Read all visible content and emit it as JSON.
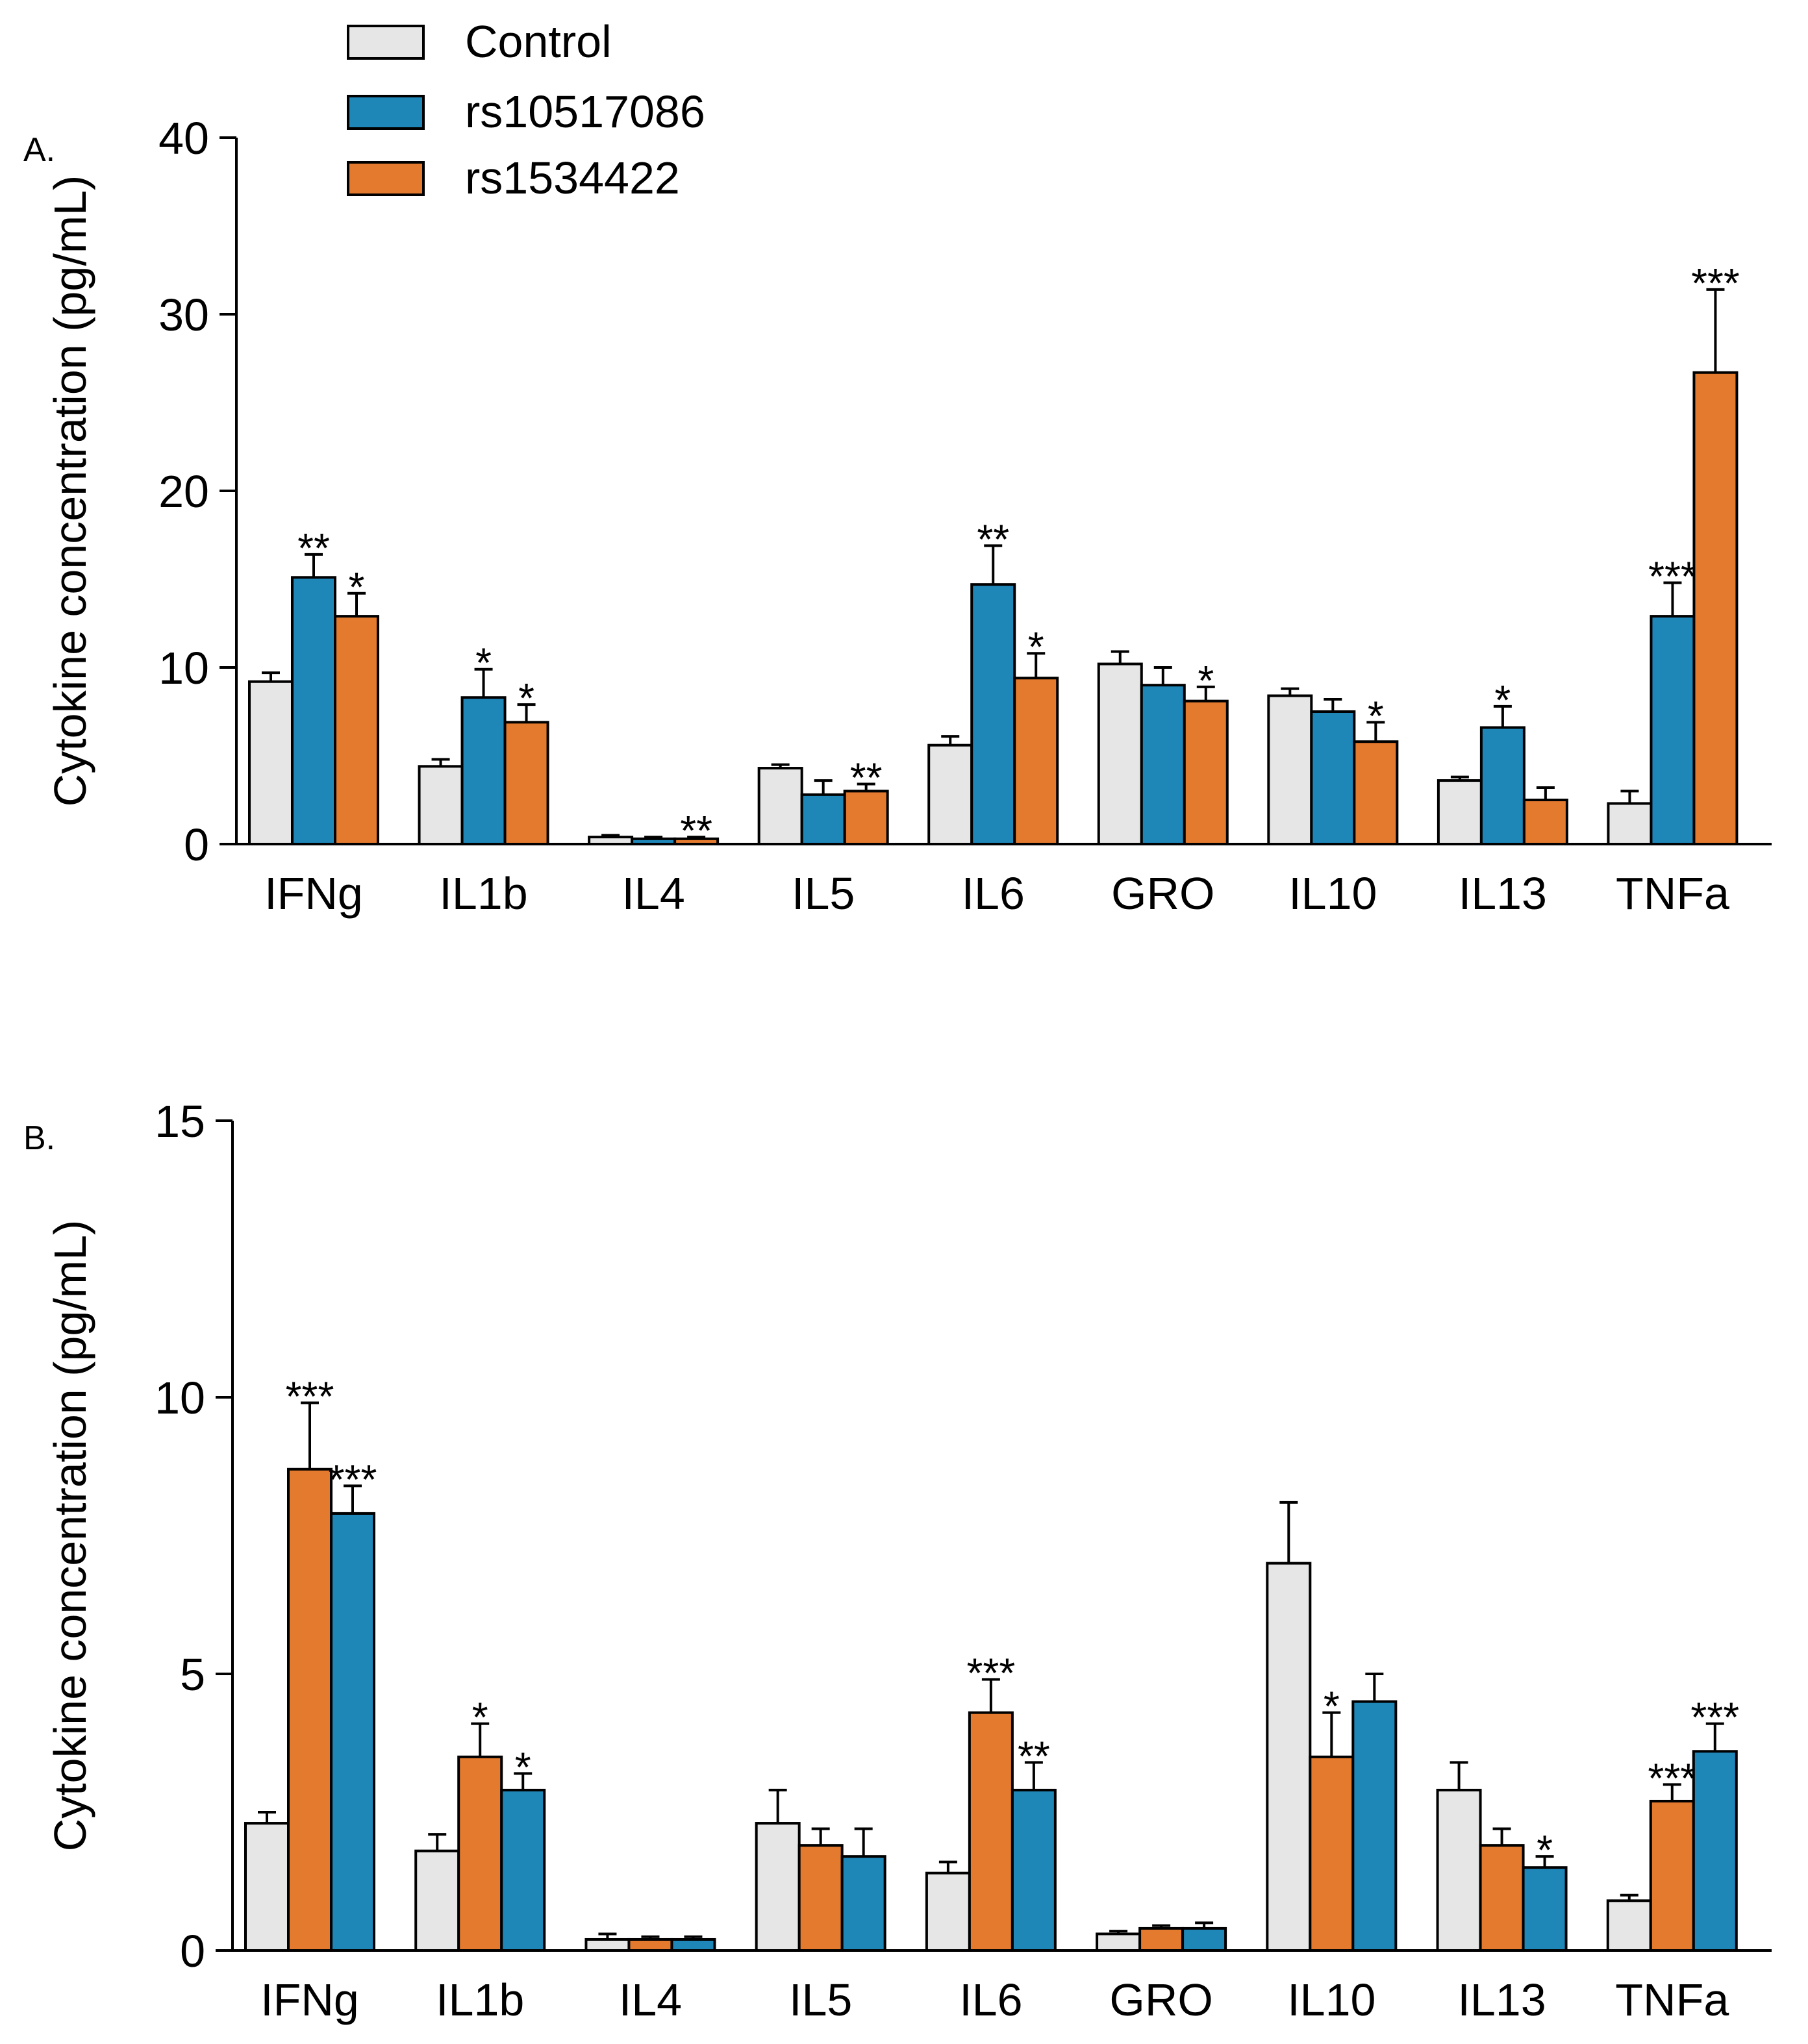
{
  "legend": {
    "entries": [
      {
        "name": "Control",
        "color": "#e6e6e6"
      },
      {
        "name": "rs10517086",
        "color": "#1f86b8"
      },
      {
        "name": "rs1534422",
        "color": "#e47a2e"
      }
    ]
  },
  "chart_data": [
    {
      "panel_label": "A.",
      "type": "bar",
      "ylabel": "Cytokine concentration (pg/mL)",
      "ylim": [
        0,
        40
      ],
      "yticks": [
        "0",
        "10",
        "20",
        "30",
        "40"
      ],
      "categories": [
        "IFNg",
        "IL1b",
        "IL4",
        "IL5",
        "IL6",
        "GRO",
        "IL10",
        "IL13",
        "TNFa"
      ],
      "series": [
        {
          "name": "Control",
          "color": "#e6e6e6",
          "values": [
            9.2,
            4.4,
            0.4,
            4.3,
            5.6,
            10.2,
            8.4,
            3.6,
            2.3
          ],
          "errors": [
            0.5,
            0.4,
            0.1,
            0.2,
            0.5,
            0.7,
            0.4,
            0.2,
            0.7
          ],
          "annotations": [
            "",
            "",
            "",
            "",
            "",
            "",
            "",
            "",
            ""
          ]
        },
        {
          "name": "rs10517086",
          "color": "#1f86b8",
          "values": [
            15.1,
            8.3,
            0.3,
            2.8,
            14.7,
            9.0,
            7.5,
            6.6,
            12.9
          ],
          "errors": [
            1.3,
            1.6,
            0.1,
            0.8,
            2.2,
            1.0,
            0.7,
            1.2,
            1.9
          ],
          "annotations": [
            "**",
            "*",
            "",
            "",
            "**",
            "",
            "",
            "*",
            "***"
          ]
        },
        {
          "name": "rs1534422",
          "color": "#e47a2e",
          "values": [
            12.9,
            6.9,
            0.3,
            3.0,
            9.4,
            8.1,
            5.8,
            2.5,
            26.7
          ],
          "errors": [
            1.3,
            1.0,
            0.1,
            0.4,
            1.4,
            0.8,
            1.1,
            0.7,
            4.7
          ],
          "annotations": [
            "*",
            "*",
            "**",
            "**",
            "*",
            "*",
            "*",
            "",
            "***"
          ]
        }
      ]
    },
    {
      "panel_label": "B.",
      "type": "bar",
      "ylabel": "Cytokine concentration (pg/mL)",
      "ylim": [
        0,
        15
      ],
      "yticks": [
        "0",
        "5",
        "10",
        "15"
      ],
      "categories": [
        "IFNg",
        "IL1b",
        "IL4",
        "IL5",
        "IL6",
        "GRO",
        "IL10",
        "IL13",
        "TNFa"
      ],
      "series": [
        {
          "name": "Control",
          "color": "#e6e6e6",
          "values": [
            2.3,
            1.8,
            0.2,
            2.3,
            1.4,
            0.3,
            7.0,
            2.9,
            0.9
          ],
          "errors": [
            0.2,
            0.3,
            0.1,
            0.6,
            0.2,
            0.05,
            1.1,
            0.5,
            0.1
          ],
          "annotations": [
            "",
            "",
            "",
            "",
            "",
            "",
            "",
            "",
            ""
          ]
        },
        {
          "name": "rs1534422",
          "color": "#e47a2e",
          "values": [
            8.7,
            3.5,
            0.2,
            1.9,
            4.3,
            0.4,
            3.5,
            1.9,
            2.7
          ],
          "errors": [
            1.2,
            0.6,
            0.05,
            0.3,
            0.6,
            0.05,
            0.8,
            0.3,
            0.3
          ],
          "annotations": [
            "***",
            "*",
            "",
            "",
            "***",
            "",
            "*",
            "",
            "***"
          ]
        },
        {
          "name": "rs10517086",
          "color": "#1f86b8",
          "values": [
            7.9,
            2.9,
            0.2,
            1.7,
            2.9,
            0.4,
            4.5,
            1.5,
            3.6
          ],
          "errors": [
            0.5,
            0.3,
            0.05,
            0.5,
            0.5,
            0.1,
            0.5,
            0.2,
            0.5
          ],
          "annotations": [
            "***",
            "*",
            "",
            "",
            "**",
            "",
            "",
            "*",
            "***"
          ]
        }
      ]
    }
  ]
}
